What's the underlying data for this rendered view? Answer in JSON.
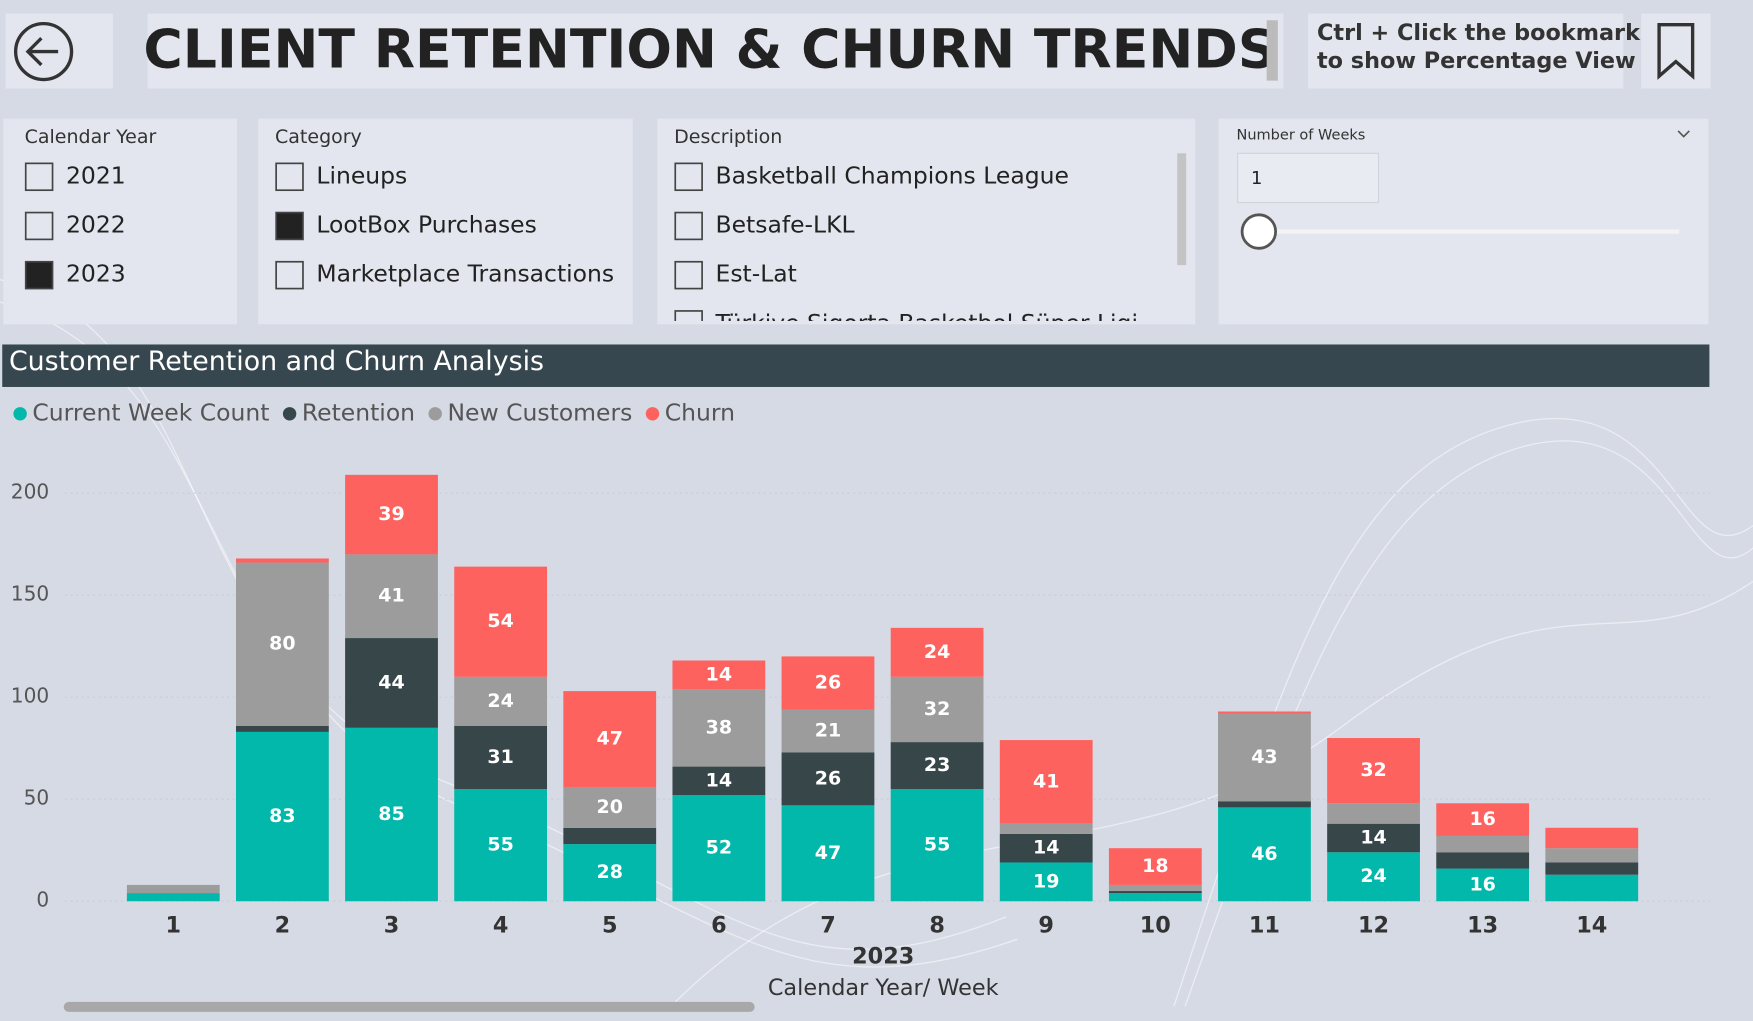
{
  "header": {
    "title": "CLIENT RETENTION & CHURN TRENDS",
    "hint": [
      "Ctrl + Click the bookmark",
      "to show Percentage View"
    ]
  },
  "filters": {
    "calendar_year": {
      "label": "Calendar Year",
      "options": [
        {
          "label": "2021",
          "checked": false
        },
        {
          "label": "2022",
          "checked": false
        },
        {
          "label": "2023",
          "checked": true
        }
      ]
    },
    "category": {
      "label": "Category",
      "options": [
        {
          "label": "Lineups",
          "checked": false
        },
        {
          "label": "LootBox Purchases",
          "checked": true
        },
        {
          "label": "Marketplace Transactions",
          "checked": false
        }
      ]
    },
    "description": {
      "label": "Description",
      "options": [
        {
          "label": "Basketball Champions League",
          "checked": false
        },
        {
          "label": "Betsafe-LKL",
          "checked": false
        },
        {
          "label": "Est-Lat",
          "checked": false
        },
        {
          "label": "Türkiye Sigorta Basketbol Süper Ligi",
          "checked": false
        }
      ]
    },
    "number_of_weeks": {
      "label": "Number of Weeks",
      "value": "1"
    }
  },
  "chart_data": {
    "type": "bar",
    "stacked": true,
    "title": "Customer Retention and Churn Analysis",
    "categories": [
      "1",
      "2",
      "3",
      "4",
      "5",
      "6",
      "7",
      "8",
      "9",
      "10",
      "11",
      "12",
      "13",
      "14"
    ],
    "group_label": "2023",
    "x_label": "Calendar Year/ Week",
    "ylim": [
      0,
      225
    ],
    "yticks": [
      0,
      50,
      100,
      150,
      200
    ],
    "grid": true,
    "series": [
      {
        "name": "Current Week Count",
        "color": "#01b8aa",
        "values": [
          4,
          83,
          85,
          55,
          28,
          52,
          47,
          55,
          19,
          4,
          46,
          24,
          16,
          13
        ]
      },
      {
        "name": "Retention",
        "color": "#374649",
        "values": [
          0,
          3,
          44,
          31,
          8,
          14,
          26,
          23,
          14,
          1,
          3,
          14,
          8,
          6
        ]
      },
      {
        "name": "New Customers",
        "color": "#9c9c9c",
        "values": [
          4,
          80,
          41,
          24,
          20,
          38,
          21,
          32,
          5,
          3,
          43,
          10,
          8,
          7
        ]
      },
      {
        "name": "Churn",
        "color": "#fd625e",
        "values": [
          0,
          2,
          39,
          54,
          47,
          14,
          26,
          24,
          41,
          18,
          1,
          32,
          16,
          10
        ]
      }
    ]
  }
}
